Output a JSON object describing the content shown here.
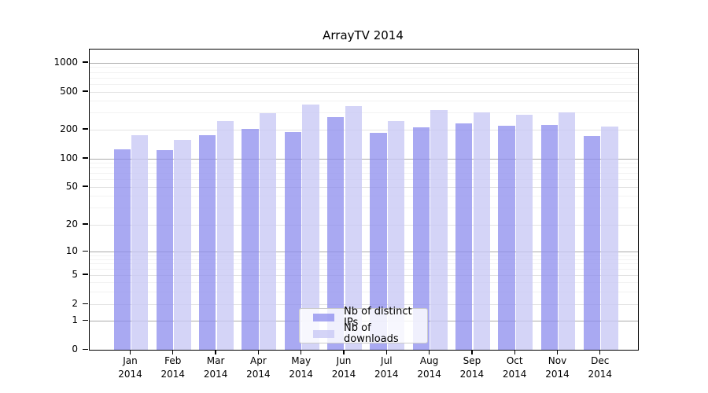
{
  "title": "ArrayTV 2014",
  "chart_data": {
    "type": "bar",
    "title": "ArrayTV 2014",
    "scale": "logarithmic-with-zero",
    "grid": true,
    "legend_position": "bottom-center-inside",
    "categories": [
      "Jan",
      "Feb",
      "Mar",
      "Apr",
      "May",
      "Jun",
      "Jul",
      "Aug",
      "Sep",
      "Oct",
      "Nov",
      "Dec"
    ],
    "category_year": "2014",
    "yticks": [
      0,
      1,
      2,
      5,
      10,
      20,
      50,
      100,
      200,
      500,
      1000
    ],
    "ylim": [
      0,
      1300
    ],
    "series": [
      {
        "name": "Nb of distinct IPs",
        "color": "rgba(140,140,238,0.75)",
        "values": [
          125,
          123,
          176,
          204,
          188,
          271,
          185,
          212,
          230,
          219,
          222,
          170
        ]
      },
      {
        "name": "Nb of downloads",
        "color": "rgba(200,200,245,0.78)",
        "values": [
          173,
          155,
          247,
          297,
          364,
          355,
          246,
          320,
          305,
          288,
          300,
          214
        ]
      }
    ]
  },
  "colors": {
    "axis": "#000000",
    "grid_major": "#e3e3e3",
    "grid_power10": "#ababab",
    "grid_minor": "#f2f2f2",
    "legend_border": "#cccccc"
  }
}
